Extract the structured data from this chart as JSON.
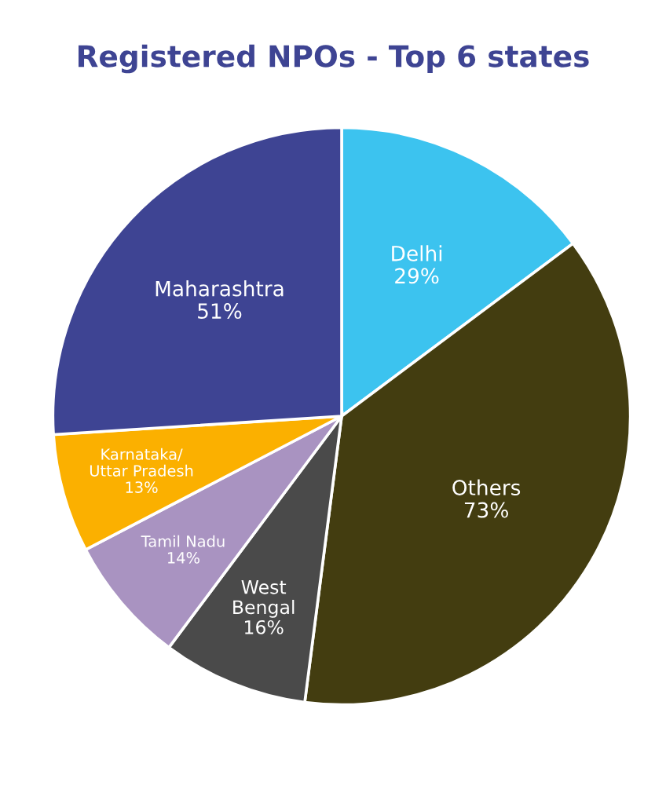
{
  "chart_data": {
    "type": "pie",
    "title": "Registered NPOs - Top 6 states",
    "categories": [
      "Delhi",
      "Others",
      "West\nBengal",
      "Tamil Nadu",
      "Karnataka/\nUttar Pradesh",
      "Maharashtra"
    ],
    "values": [
      29,
      73,
      16,
      14,
      13,
      51
    ],
    "value_labels": [
      "29%",
      "73%",
      "16%",
      "14%",
      "13%",
      "51%"
    ],
    "colors": [
      "#3cc3ef",
      "#433d10",
      "#4a4a4a",
      "#a993c1",
      "#fbb000",
      "#3e4493"
    ]
  }
}
